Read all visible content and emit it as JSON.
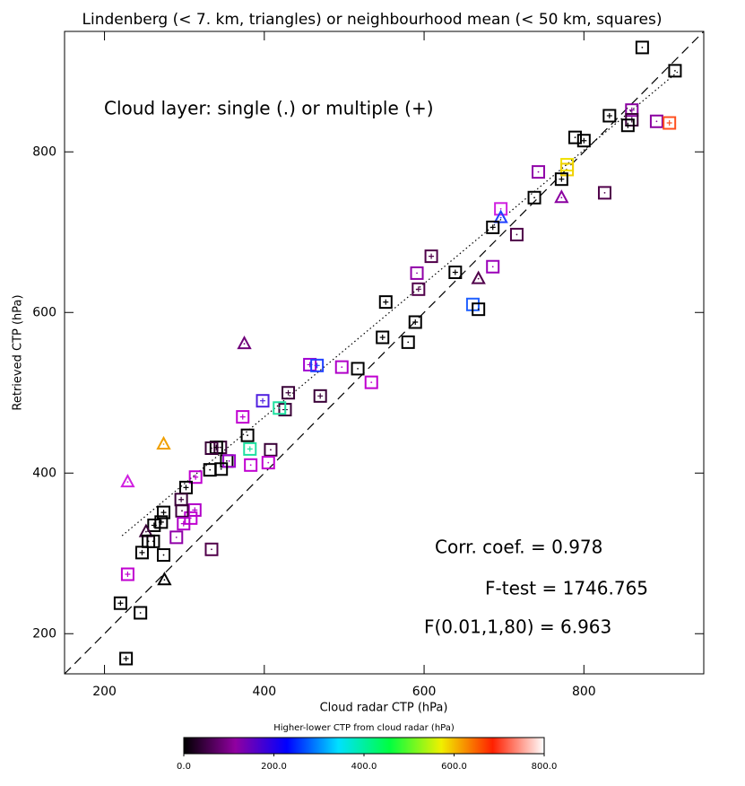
{
  "chart_data": {
    "type": "scatter",
    "title": "Lindenberg (< 7. km, triangles) or neighbourhood mean (< 50 km, squares)",
    "x_label": "Cloud radar CTP (hPa)",
    "y_label": "Retrieved CTP (hPa)",
    "annotations": [
      "Cloud layer: single (.) or multiple (+)",
      "Corr. coef. = 0.978",
      "F-test = 1746.765",
      "F(0.01,1,80) = 6.963"
    ],
    "xlim": [
      150,
      950
    ],
    "ylim": [
      150,
      950
    ],
    "xticks": [
      200,
      400,
      600,
      800
    ],
    "yticks": [
      200,
      400,
      600,
      800
    ],
    "lines": [
      {
        "style": "dashed",
        "x": [
          150,
          950
        ],
        "y": [
          150,
          950
        ]
      },
      {
        "style": "dotted",
        "x": [
          222,
          919
        ],
        "y": [
          322,
          901
        ]
      }
    ],
    "points": {
      "x": [
        873,
        914,
        832,
        860,
        860,
        855,
        891,
        907,
        789,
        800,
        779,
        779,
        772,
        743,
        738,
        826,
        772,
        696,
        696,
        686,
        716,
        609,
        686,
        639,
        591,
        668,
        593,
        661,
        668,
        552,
        589,
        548,
        580,
        375,
        497,
        517,
        534,
        457,
        466,
        430,
        470,
        398,
        426,
        419,
        373,
        379,
        408,
        345,
        340,
        334,
        353,
        382,
        274,
        356,
        346,
        383,
        405,
        332,
        314,
        302,
        229,
        296,
        274,
        313,
        308,
        297,
        271,
        262,
        299,
        252,
        261,
        290,
        255,
        247,
        334,
        274,
        229,
        275,
        220,
        245,
        227
      ],
      "y": [
        930,
        901,
        845,
        852,
        840,
        833,
        838,
        836,
        818,
        814,
        784,
        778,
        766,
        775,
        743,
        749,
        743,
        729,
        718,
        706,
        697,
        670,
        657,
        650,
        649,
        642,
        629,
        610,
        604,
        613,
        588,
        569,
        563,
        561,
        532,
        530,
        513,
        535,
        534,
        500,
        496,
        490,
        479,
        481,
        470,
        447,
        429,
        432,
        432,
        431,
        415,
        430,
        436,
        415,
        405,
        410,
        413,
        404,
        395,
        382,
        389,
        367,
        351,
        354,
        344,
        353,
        339,
        335,
        337,
        327,
        315,
        320,
        315,
        301,
        305,
        298,
        274,
        267,
        238,
        226,
        169
      ],
      "marker": [
        "square",
        "square",
        "square",
        "square",
        "square",
        "square",
        "square",
        "square",
        "square",
        "square",
        "square",
        "square",
        "square",
        "square",
        "square",
        "square",
        "triangle",
        "square",
        "triangle",
        "square",
        "square",
        "square",
        "square",
        "square",
        "square",
        "triangle",
        "square",
        "square",
        "square",
        "square",
        "square",
        "square",
        "square",
        "triangle",
        "square",
        "square",
        "square",
        "square",
        "square",
        "square",
        "square",
        "square",
        "square",
        "square",
        "square",
        "square",
        "square",
        "square",
        "square",
        "square",
        "square",
        "square",
        "triangle",
        "square",
        "square",
        "square",
        "square",
        "square",
        "square",
        "square",
        "triangle",
        "square",
        "square",
        "square",
        "square",
        "square",
        "square",
        "square",
        "square",
        "triangle",
        "square",
        "square",
        "square",
        "square",
        "square",
        "square",
        "square",
        "triangle",
        "square",
        "square",
        "square"
      ],
      "layer": [
        ".",
        ".",
        "+",
        "+",
        "+",
        "+",
        ".",
        "+",
        ".",
        "+",
        ".",
        ".",
        "+",
        ".",
        ".",
        ".",
        ".",
        ".",
        ".",
        "+",
        ".",
        "+",
        ".",
        "+",
        ".",
        ".",
        "+",
        ".",
        ".",
        "+",
        "+",
        "+",
        ".",
        ".",
        ".",
        ".",
        ".",
        "+",
        "+",
        "+",
        "+",
        "+",
        "+",
        ".",
        "+",
        ".",
        ".",
        ".",
        "+",
        ".",
        ".",
        "+",
        ".",
        ".",
        ".",
        ".",
        ".",
        ".",
        "+",
        "+",
        ".",
        "+",
        "+",
        "+",
        ".",
        ".",
        "+",
        "+",
        "+",
        ".",
        ".",
        ".",
        ".",
        "+",
        ".",
        ".",
        "+",
        ".",
        "+",
        ".",
        "+"
      ],
      "color": [
        "#000000",
        "#000000",
        "#000000",
        "#8a00a0",
        "#3a0038",
        "#000000",
        "#8a00a0",
        "#ff5020",
        "#000000",
        "#000000",
        "#f0e000",
        "#f0d000",
        "#000000",
        "#9000a8",
        "#000000",
        "#50004a",
        "#8a00a0",
        "#d020e0",
        "#2040ff",
        "#000000",
        "#50004a",
        "#50004a",
        "#9a00b8",
        "#000000",
        "#9000a8",
        "#50004a",
        "#50004a",
        "#2060ff",
        "#000000",
        "#000000",
        "#000000",
        "#000000",
        "#000000",
        "#70007a",
        "#b000c8",
        "#000000",
        "#c000d0",
        "#a000d0",
        "#2040ff",
        "#3a0038",
        "#3a0038",
        "#5020e0",
        "#3a0038",
        "#20e0a0",
        "#c000d0",
        "#000000",
        "#3a0038",
        "#3a0038",
        "#000000",
        "#3a0038",
        "#000000",
        "#20e0a0",
        "#f0a000",
        "#a000d0",
        "#000000",
        "#c000d0",
        "#c000d0",
        "#000000",
        "#c000d0",
        "#000000",
        "#d020e0",
        "#3a0038",
        "#000000",
        "#b000c8",
        "#c000d0",
        "#3a0038",
        "#000000",
        "#000000",
        "#b000c8",
        "#3a0038",
        "#000000",
        "#9000a8",
        "#000000",
        "#000000",
        "#50004a",
        "#000000",
        "#c000d0",
        "#000000",
        "#000000",
        "#000000",
        "#000000"
      ]
    },
    "colorbar": {
      "title": "Higher-lower CTP from cloud radar (hPa)",
      "clim": [
        0,
        800
      ],
      "colors": [
        "#000000",
        "#9000a0",
        "#0000ff",
        "#00e0ff",
        "#00ff40",
        "#f0f000",
        "#ff2000",
        "#ffffff"
      ],
      "ticks": [
        {
          "value": 0,
          "label": "0.0"
        },
        {
          "value": 200,
          "label": "200.0"
        },
        {
          "value": 400,
          "label": "400.0"
        },
        {
          "value": 600,
          "label": "600.0"
        },
        {
          "value": 800,
          "label": "800.0"
        }
      ]
    }
  }
}
